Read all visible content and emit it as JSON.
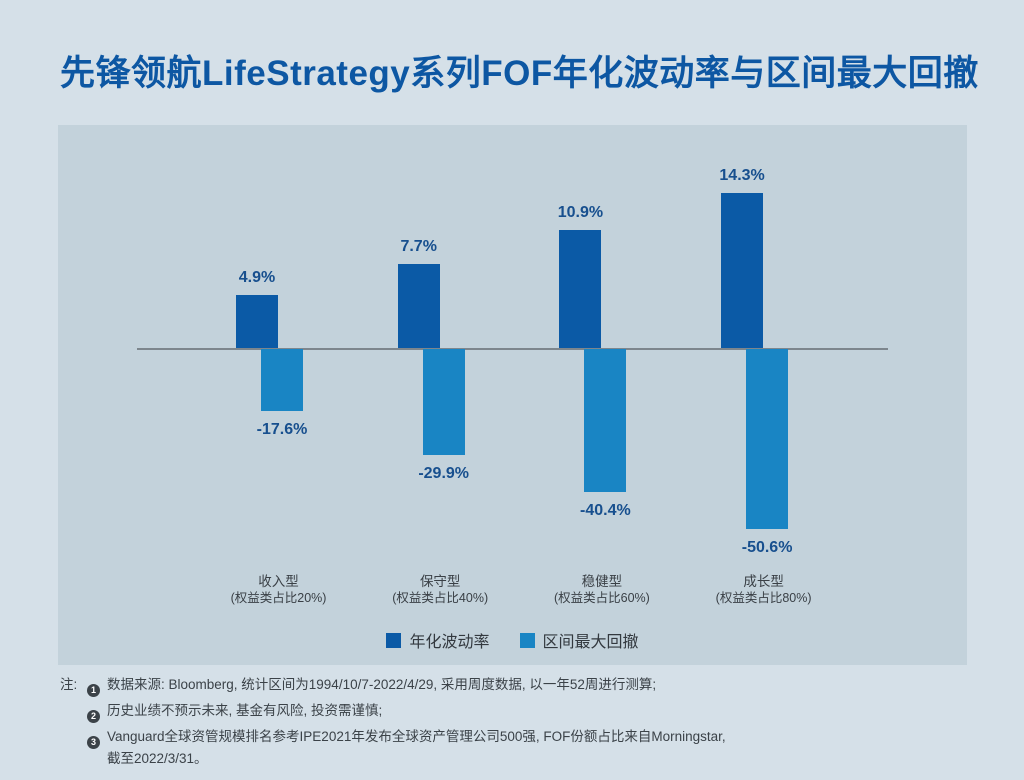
{
  "title": "先锋领航LifeStrategy系列FOF年化波动率与区间最大回撤",
  "colors": {
    "page_background": "#d5e0e8",
    "panel_background": "#c3d2db",
    "volatility_bar": "#0b5aa6",
    "drawdown_bar": "#1985c4",
    "title_text": "#0d57a3",
    "value_label_text": "#174f8e",
    "body_text": "#3a4046",
    "axis_line": "#7d868d"
  },
  "chart_data": {
    "type": "bar",
    "title": "先锋领航LifeStrategy系列FOF年化波动率与区间最大回撤",
    "xlabel": "",
    "ylabel": "",
    "grid": false,
    "legend_position": "bottom",
    "zero_baseline": true,
    "categories": [
      {
        "name": "收入型",
        "sublabel": "(权益类占比20%)"
      },
      {
        "name": "保守型",
        "sublabel": "(权益类占比40%)"
      },
      {
        "name": "稳健型",
        "sublabel": "(权益类占比60%)"
      },
      {
        "name": "成长型",
        "sublabel": "(权益类占比80%)"
      }
    ],
    "series": [
      {
        "name": "年化波动率",
        "values": [
          4.9,
          7.7,
          10.9,
          14.3
        ],
        "labels": [
          "4.9%",
          "7.7%",
          "10.9%",
          "14.3%"
        ],
        "color_key": "volatility_bar"
      },
      {
        "name": "区间最大回撤",
        "values": [
          -17.6,
          -29.9,
          -40.4,
          -50.6
        ],
        "labels": [
          "-17.6%",
          "-29.9%",
          "-40.4%",
          "-50.6%"
        ],
        "color_key": "drawdown_bar"
      }
    ]
  },
  "notes": {
    "prefix": "注:",
    "items": [
      {
        "num": "1",
        "text": "数据来源: Bloomberg, 统计区间为1994/10/7-2022/4/29, 采用周度数据, 以一年52周进行测算;"
      },
      {
        "num": "2",
        "text": "历史业绩不预示未来, 基金有风险, 投资需谨慎;"
      },
      {
        "num": "3",
        "text": "Vanguard全球资管规模排名参考IPE2021年发布全球资产管理公司500强, FOF份额占比来自Morningstar,",
        "text2": "截至2022/3/31。"
      }
    ]
  }
}
